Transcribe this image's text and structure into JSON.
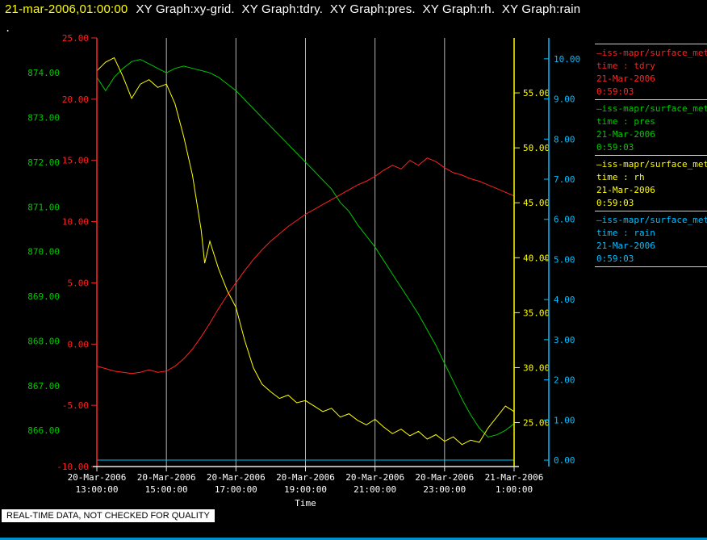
{
  "window": {
    "title_time": "21-mar-2006,01:00:00",
    "title_graphs": "XY Graph:xy-grid.  XY Graph:tdry.  XY Graph:pres.  XY Graph:rh.  XY Graph:rain",
    "corner_dot": ".",
    "status_banner": "REAL-TIME DATA, NOT CHECKED FOR QUALITY",
    "colors": {
      "background": "#000000",
      "title_time": "#ffff00",
      "title_text": "#ffffff",
      "grid": "#b4b4b4",
      "x_axis": "#e8e8e8",
      "separator": "#cccccc",
      "banner_bg": "#ffffff",
      "banner_text": "#000000",
      "bottom_border": "#0091c8"
    }
  },
  "legend": {
    "entries": [
      {
        "sample": "—",
        "name": "iss-mapr/surface_met",
        "field": "time : tdry",
        "date": "21-Mar-2006",
        "time": "0:59:03",
        "color": "#ff2222"
      },
      {
        "sample": "—",
        "name": "iss-mapr/surface_met",
        "field": "time : pres",
        "date": "21-Mar-2006",
        "time": "0:59:03",
        "color": "#00c800"
      },
      {
        "sample": "—",
        "name": "iss-mapr/surface_met",
        "field": "time : rh",
        "date": "21-Mar-2006",
        "time": "0:59:03",
        "color": "#ffff00"
      },
      {
        "sample": "—",
        "name": "iss-mapr/surface_met",
        "field": "time : rain",
        "date": "21-Mar-2006",
        "time": "0:59:03",
        "color": "#00bfff"
      }
    ]
  },
  "chart_data": {
    "type": "line",
    "title": "",
    "xlabel": "Time",
    "x_range": [
      13,
      25
    ],
    "x_ticks": [
      {
        "hour": 13,
        "date": "20-Mar-2006",
        "time": "13:00:00",
        "grid": false
      },
      {
        "hour": 15,
        "date": "20-Mar-2006",
        "time": "15:00:00",
        "grid": true
      },
      {
        "hour": 17,
        "date": "20-Mar-2006",
        "time": "17:00:00",
        "grid": true
      },
      {
        "hour": 19,
        "date": "20-Mar-2006",
        "time": "19:00:00",
        "grid": true
      },
      {
        "hour": 21,
        "date": "20-Mar-2006",
        "time": "21:00:00",
        "grid": true
      },
      {
        "hour": 23,
        "date": "20-Mar-2006",
        "time": "23:00:00",
        "grid": true
      },
      {
        "hour": 25,
        "date": "21-Mar-2006",
        "time": "1:00:00",
        "grid": false
      }
    ],
    "y_axes": [
      {
        "id": "pres",
        "label_side": "left-outer",
        "color": "#00c800",
        "min": 865.19,
        "max": 874.78,
        "ticks": [
          874,
          873,
          872,
          871,
          870,
          869,
          868,
          867,
          866
        ]
      },
      {
        "id": "tdry",
        "label_side": "left-inner",
        "color": "#ff2222",
        "min": -10,
        "max": 25,
        "ticks": [
          25,
          20,
          15,
          10,
          5,
          0,
          -5,
          -10
        ]
      },
      {
        "id": "rh",
        "label_side": "right-inner",
        "color": "#ffff00",
        "min": 21.0,
        "max": 60.0,
        "ticks": [
          55,
          50,
          45,
          40,
          35,
          30,
          25
        ]
      },
      {
        "id": "rain",
        "label_side": "right-outer",
        "color": "#00bfff",
        "min": -0.16,
        "max": 10.52,
        "ticks": [
          10,
          9,
          8,
          7,
          6,
          5,
          4,
          3,
          2,
          1,
          0
        ]
      }
    ],
    "series": [
      {
        "name": "tdry",
        "axis": "tdry",
        "color": "#ff2222",
        "points": [
          [
            13,
            -1.8
          ],
          [
            13.25,
            -2.0
          ],
          [
            13.5,
            -2.2
          ],
          [
            13.75,
            -2.3
          ],
          [
            14,
            -2.4
          ],
          [
            14.25,
            -2.3
          ],
          [
            14.5,
            -2.1
          ],
          [
            14.75,
            -2.3
          ],
          [
            15,
            -2.2
          ],
          [
            15.25,
            -1.8
          ],
          [
            15.5,
            -1.2
          ],
          [
            15.75,
            -0.4
          ],
          [
            16,
            0.6
          ],
          [
            16.25,
            1.7
          ],
          [
            16.5,
            2.9
          ],
          [
            16.75,
            4.0
          ],
          [
            17,
            5.0
          ],
          [
            17.25,
            6.0
          ],
          [
            17.5,
            6.9
          ],
          [
            17.75,
            7.7
          ],
          [
            18,
            8.4
          ],
          [
            18.25,
            9.0
          ],
          [
            18.5,
            9.6
          ],
          [
            18.75,
            10.1
          ],
          [
            19,
            10.6
          ],
          [
            19.25,
            11.0
          ],
          [
            19.5,
            11.4
          ],
          [
            19.75,
            11.8
          ],
          [
            20,
            12.2
          ],
          [
            20.25,
            12.6
          ],
          [
            20.5,
            13.0
          ],
          [
            20.75,
            13.3
          ],
          [
            21,
            13.7
          ],
          [
            21.25,
            14.2
          ],
          [
            21.5,
            14.6
          ],
          [
            21.75,
            14.3
          ],
          [
            22,
            15.0
          ],
          [
            22.25,
            14.6
          ],
          [
            22.5,
            15.2
          ],
          [
            22.75,
            14.9
          ],
          [
            23,
            14.4
          ],
          [
            23.25,
            14.0
          ],
          [
            23.5,
            13.8
          ],
          [
            23.75,
            13.5
          ],
          [
            24,
            13.3
          ],
          [
            24.25,
            13.0
          ],
          [
            24.5,
            12.7
          ],
          [
            24.75,
            12.4
          ],
          [
            25,
            12.1
          ]
        ]
      },
      {
        "name": "pres",
        "axis": "pres",
        "color": "#00c800",
        "points": [
          [
            13,
            873.9
          ],
          [
            13.25,
            873.6
          ],
          [
            13.5,
            873.9
          ],
          [
            13.75,
            874.1
          ],
          [
            14,
            874.25
          ],
          [
            14.25,
            874.3
          ],
          [
            14.5,
            874.2
          ],
          [
            14.75,
            874.1
          ],
          [
            15,
            874.0
          ],
          [
            15.25,
            874.1
          ],
          [
            15.5,
            874.15
          ],
          [
            15.75,
            874.1
          ],
          [
            16,
            874.05
          ],
          [
            16.25,
            874.0
          ],
          [
            16.5,
            873.9
          ],
          [
            16.75,
            873.75
          ],
          [
            17,
            873.6
          ],
          [
            17.25,
            873.4
          ],
          [
            17.5,
            873.2
          ],
          [
            17.75,
            873.0
          ],
          [
            18,
            872.8
          ],
          [
            18.25,
            872.6
          ],
          [
            18.5,
            872.4
          ],
          [
            18.75,
            872.2
          ],
          [
            19,
            872.0
          ],
          [
            19.25,
            871.8
          ],
          [
            19.5,
            871.6
          ],
          [
            19.75,
            871.4
          ],
          [
            20,
            871.1
          ],
          [
            20.25,
            870.9
          ],
          [
            20.5,
            870.6
          ],
          [
            20.75,
            870.35
          ],
          [
            21,
            870.1
          ],
          [
            21.25,
            869.8
          ],
          [
            21.5,
            869.5
          ],
          [
            21.75,
            869.2
          ],
          [
            22,
            868.9
          ],
          [
            22.25,
            868.6
          ],
          [
            22.5,
            868.25
          ],
          [
            22.75,
            867.9
          ],
          [
            23,
            867.5
          ],
          [
            23.25,
            867.1
          ],
          [
            23.5,
            866.7
          ],
          [
            23.75,
            866.35
          ],
          [
            24,
            866.05
          ],
          [
            24.25,
            865.85
          ],
          [
            24.5,
            865.9
          ],
          [
            24.75,
            866.0
          ],
          [
            25,
            866.15
          ]
        ]
      },
      {
        "name": "rh",
        "axis": "rh",
        "color": "#ffff00",
        "points": [
          [
            13,
            57.0
          ],
          [
            13.25,
            57.8
          ],
          [
            13.5,
            58.2
          ],
          [
            13.75,
            56.5
          ],
          [
            14,
            54.5
          ],
          [
            14.25,
            55.8
          ],
          [
            14.5,
            56.2
          ],
          [
            14.75,
            55.5
          ],
          [
            15,
            55.8
          ],
          [
            15.25,
            54.0
          ],
          [
            15.5,
            51.0
          ],
          [
            15.75,
            47.5
          ],
          [
            16,
            42.5
          ],
          [
            16.1,
            39.5
          ],
          [
            16.25,
            41.5
          ],
          [
            16.5,
            39.0
          ],
          [
            16.75,
            37.0
          ],
          [
            17,
            35.5
          ],
          [
            17.25,
            32.5
          ],
          [
            17.5,
            30.0
          ],
          [
            17.75,
            28.5
          ],
          [
            18,
            27.8
          ],
          [
            18.25,
            27.2
          ],
          [
            18.5,
            27.5
          ],
          [
            18.75,
            26.8
          ],
          [
            19,
            27.0
          ],
          [
            19.25,
            26.5
          ],
          [
            19.5,
            26.0
          ],
          [
            19.75,
            26.3
          ],
          [
            20,
            25.5
          ],
          [
            20.25,
            25.8
          ],
          [
            20.5,
            25.2
          ],
          [
            20.75,
            24.8
          ],
          [
            21,
            25.3
          ],
          [
            21.25,
            24.6
          ],
          [
            21.5,
            24.0
          ],
          [
            21.75,
            24.4
          ],
          [
            22,
            23.8
          ],
          [
            22.25,
            24.2
          ],
          [
            22.5,
            23.5
          ],
          [
            22.75,
            23.9
          ],
          [
            23,
            23.3
          ],
          [
            23.25,
            23.7
          ],
          [
            23.5,
            23.0
          ],
          [
            23.75,
            23.4
          ],
          [
            24,
            23.2
          ],
          [
            24.25,
            24.5
          ],
          [
            24.5,
            25.5
          ],
          [
            24.75,
            26.5
          ],
          [
            25,
            26.0
          ]
        ]
      },
      {
        "name": "rain",
        "axis": "rain",
        "color": "#00bfff",
        "points": [
          [
            13,
            0.0
          ],
          [
            25,
            0.0
          ]
        ]
      }
    ]
  }
}
